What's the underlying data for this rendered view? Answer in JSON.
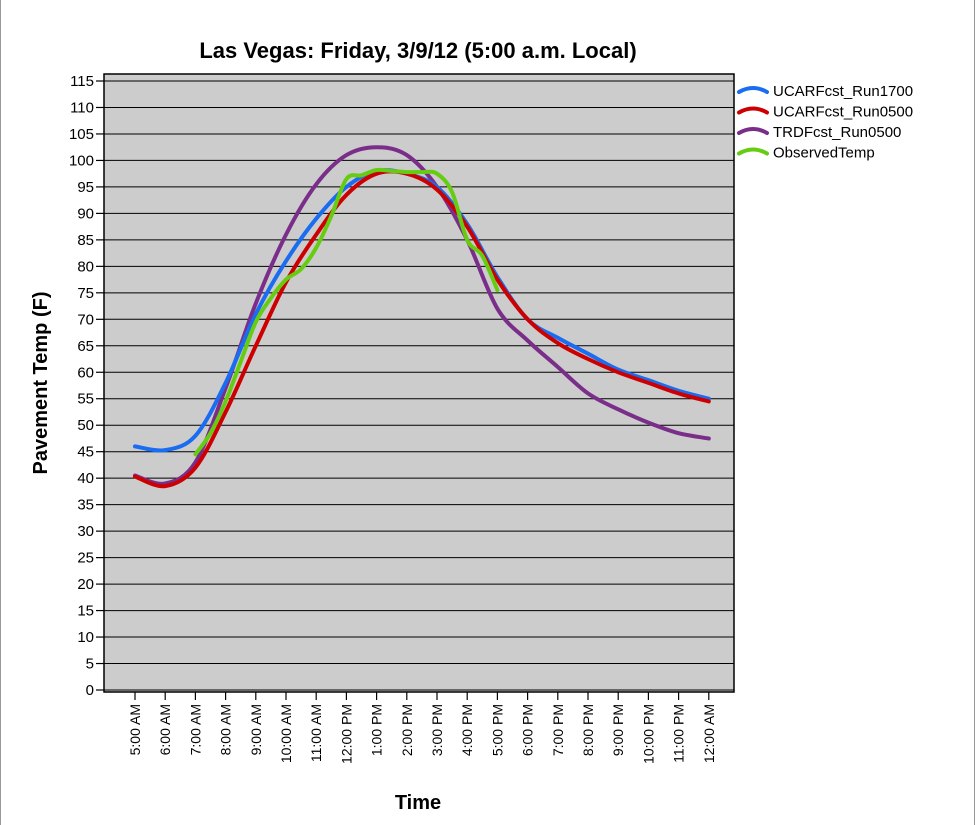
{
  "chart_data": {
    "type": "line",
    "title": "Las Vegas: Friday, 3/9/12 (5:00 a.m. Local)",
    "xlabel": "Time",
    "ylabel": "Pavement Temp (F)",
    "ylim": [
      0,
      115
    ],
    "yticks": [
      0,
      5,
      10,
      15,
      20,
      25,
      30,
      35,
      40,
      45,
      50,
      55,
      60,
      65,
      70,
      75,
      80,
      85,
      90,
      95,
      100,
      105,
      110,
      115
    ],
    "categories": [
      "5:00 AM",
      "6:00 AM",
      "7:00 AM",
      "8:00 AM",
      "9:00 AM",
      "10:00 AM",
      "11:00 AM",
      "12:00 PM",
      "1:00 PM",
      "2:00 PM",
      "3:00 PM",
      "4:00 PM",
      "5:00 PM",
      "6:00 PM",
      "7:00 PM",
      "8:00 PM",
      "9:00 PM",
      "10:00 PM",
      "11:00 PM",
      "12:00 AM"
    ],
    "grid": "horizontal",
    "plot_background": "#cccccc",
    "legend_position": "right",
    "series": [
      {
        "name": "UCARFcst_Run1700",
        "color": "#1a6cf0",
        "x": [
          0,
          1,
          2,
          3,
          4,
          5,
          6,
          7,
          8,
          9,
          10,
          11,
          12,
          13,
          14,
          15,
          16,
          17,
          18,
          19
        ],
        "values": [
          46,
          45.3,
          48,
          58,
          71,
          81,
          89,
          95,
          98,
          97.5,
          95,
          88,
          78,
          70,
          66.5,
          63.5,
          60.5,
          58.5,
          56.5,
          55
        ]
      },
      {
        "name": "UCARFcst_Run0500",
        "color": "#cc0000",
        "x": [
          0,
          1,
          2,
          3,
          4,
          5,
          6,
          7,
          8,
          9,
          10,
          11,
          12,
          13,
          14,
          15,
          16,
          17,
          18,
          19
        ],
        "values": [
          40.3,
          38.5,
          42,
          52.5,
          65,
          77,
          86,
          93.5,
          97.5,
          97.5,
          94.5,
          87.5,
          77.5,
          70,
          65.5,
          62.5,
          60,
          58,
          56,
          54.5
        ]
      },
      {
        "name": "TRDFcst_Run0500",
        "color": "#7a2e8a",
        "x": [
          0,
          1,
          2,
          3,
          4,
          5,
          6,
          7,
          8,
          9,
          10,
          11,
          12,
          13,
          14,
          15,
          16,
          17,
          18,
          19
        ],
        "values": [
          40.5,
          39,
          43,
          57,
          73,
          86,
          95.5,
          101,
          102.5,
          101,
          95,
          85,
          72,
          66,
          61,
          56,
          53,
          50.5,
          48.5,
          47.5
        ]
      },
      {
        "name": "ObservedTemp",
        "color": "#66cc11",
        "x": [
          2,
          2.5,
          3,
          3.5,
          4,
          4.5,
          5,
          5.5,
          6,
          6.5,
          7,
          7.5,
          8,
          8.5,
          9,
          9.5,
          10,
          10.5,
          11,
          11.5,
          12
        ],
        "values": [
          44.5,
          48.5,
          54.5,
          62,
          69.5,
          74,
          77.5,
          79.5,
          83.5,
          89.5,
          96.5,
          97.2,
          98.2,
          98,
          97.8,
          97.8,
          97.5,
          94,
          85,
          82,
          75.5
        ]
      }
    ]
  }
}
